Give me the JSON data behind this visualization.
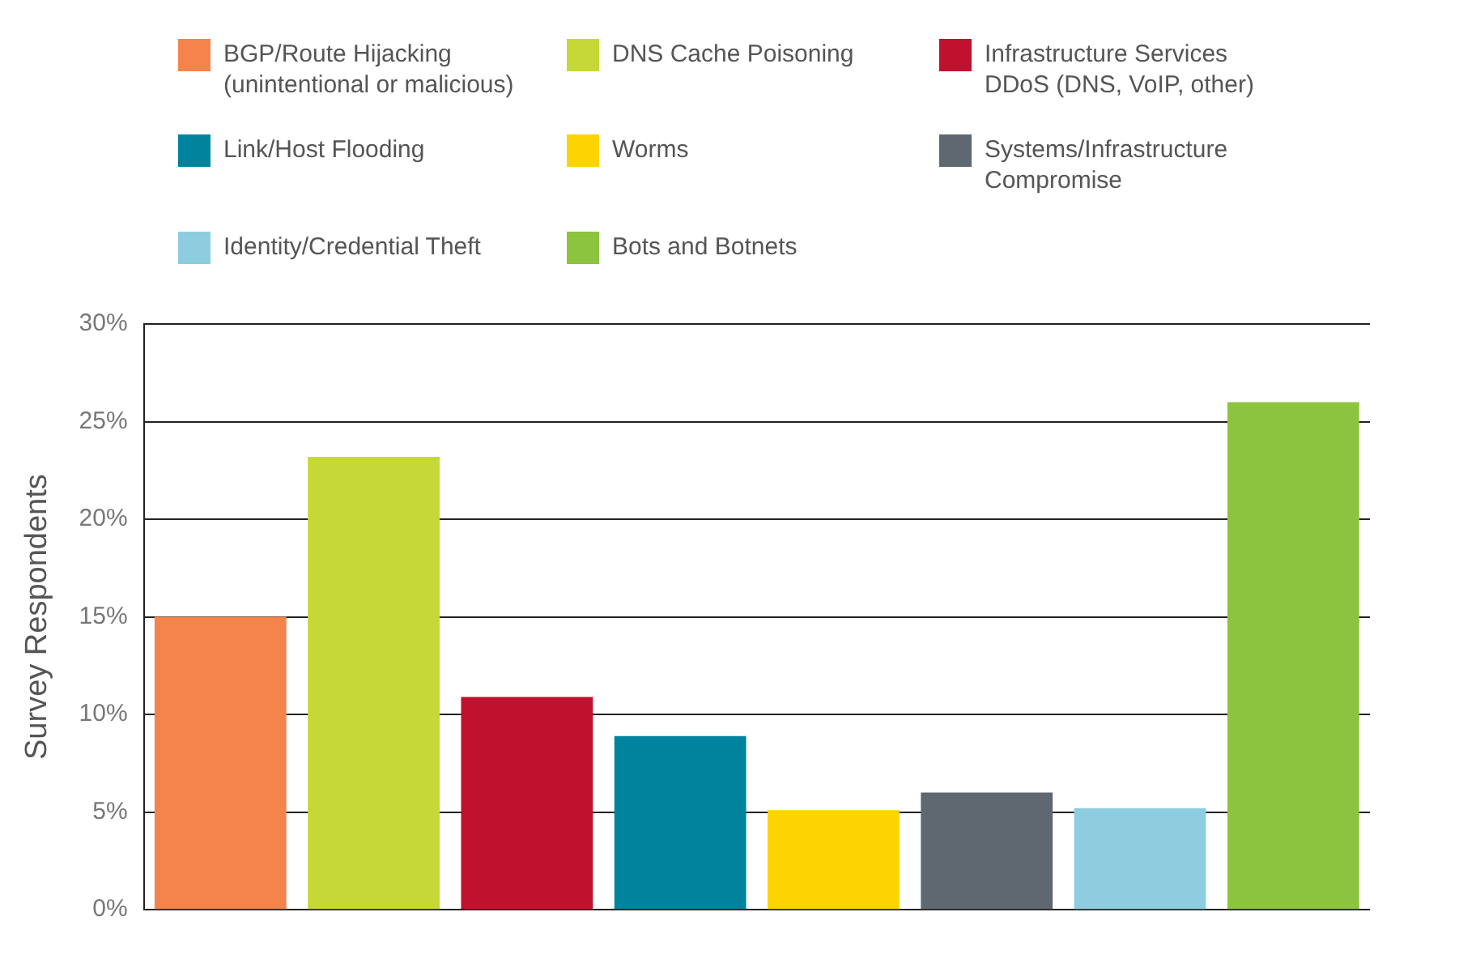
{
  "chart_data": {
    "type": "bar",
    "ylabel": "Survey Respondents",
    "categories": [
      null,
      null,
      null,
      null,
      null,
      null,
      null,
      null
    ],
    "series": [
      {
        "name": "BGP/Route Hijacking\n(unintentional or malicious)",
        "color": "#f4844c",
        "values": [
          15,
          null,
          null,
          null,
          null,
          null,
          null,
          null
        ]
      },
      {
        "name": "DNS Cache Poisoning",
        "color": "#c6d836",
        "values": [
          null,
          23.2,
          null,
          null,
          null,
          null,
          null,
          null
        ]
      },
      {
        "name": "Infrastructure Services\nDDoS (DNS, VoIP, other)",
        "color": "#c0112f",
        "values": [
          null,
          null,
          10.9,
          null,
          null,
          null,
          null,
          null
        ]
      },
      {
        "name": "Link/Host Flooding",
        "color": "#00849e",
        "values": [
          null,
          null,
          null,
          8.9,
          null,
          null,
          null,
          null
        ]
      },
      {
        "name": "Worms",
        "color": "#fcd400",
        "values": [
          null,
          null,
          null,
          null,
          5.1,
          null,
          null,
          null
        ]
      },
      {
        "name": "Systems/Infrastructure\nCompromise",
        "color": "#5f6770",
        "values": [
          null,
          null,
          null,
          null,
          null,
          6,
          null,
          null
        ]
      },
      {
        "name": "Identity/Credential Theft",
        "color": "#8ecde0",
        "values": [
          null,
          null,
          null,
          null,
          null,
          null,
          5.2,
          null
        ]
      },
      {
        "name": "Bots and Botnets",
        "color": "#8cc43f",
        "values": [
          null,
          null,
          null,
          null,
          null,
          null,
          null,
          26
        ]
      }
    ],
    "ylim": [
      0,
      30
    ],
    "yticks": [
      {
        "value": 0,
        "label": "0%"
      },
      {
        "value": 5,
        "label": "5%"
      },
      {
        "value": 10,
        "label": "10%"
      },
      {
        "value": 15,
        "label": "15%"
      },
      {
        "value": 20,
        "label": "20%"
      },
      {
        "value": 25,
        "label": "25%"
      },
      {
        "value": 30,
        "label": "30%"
      }
    ],
    "grid": "y",
    "legend": "top"
  }
}
